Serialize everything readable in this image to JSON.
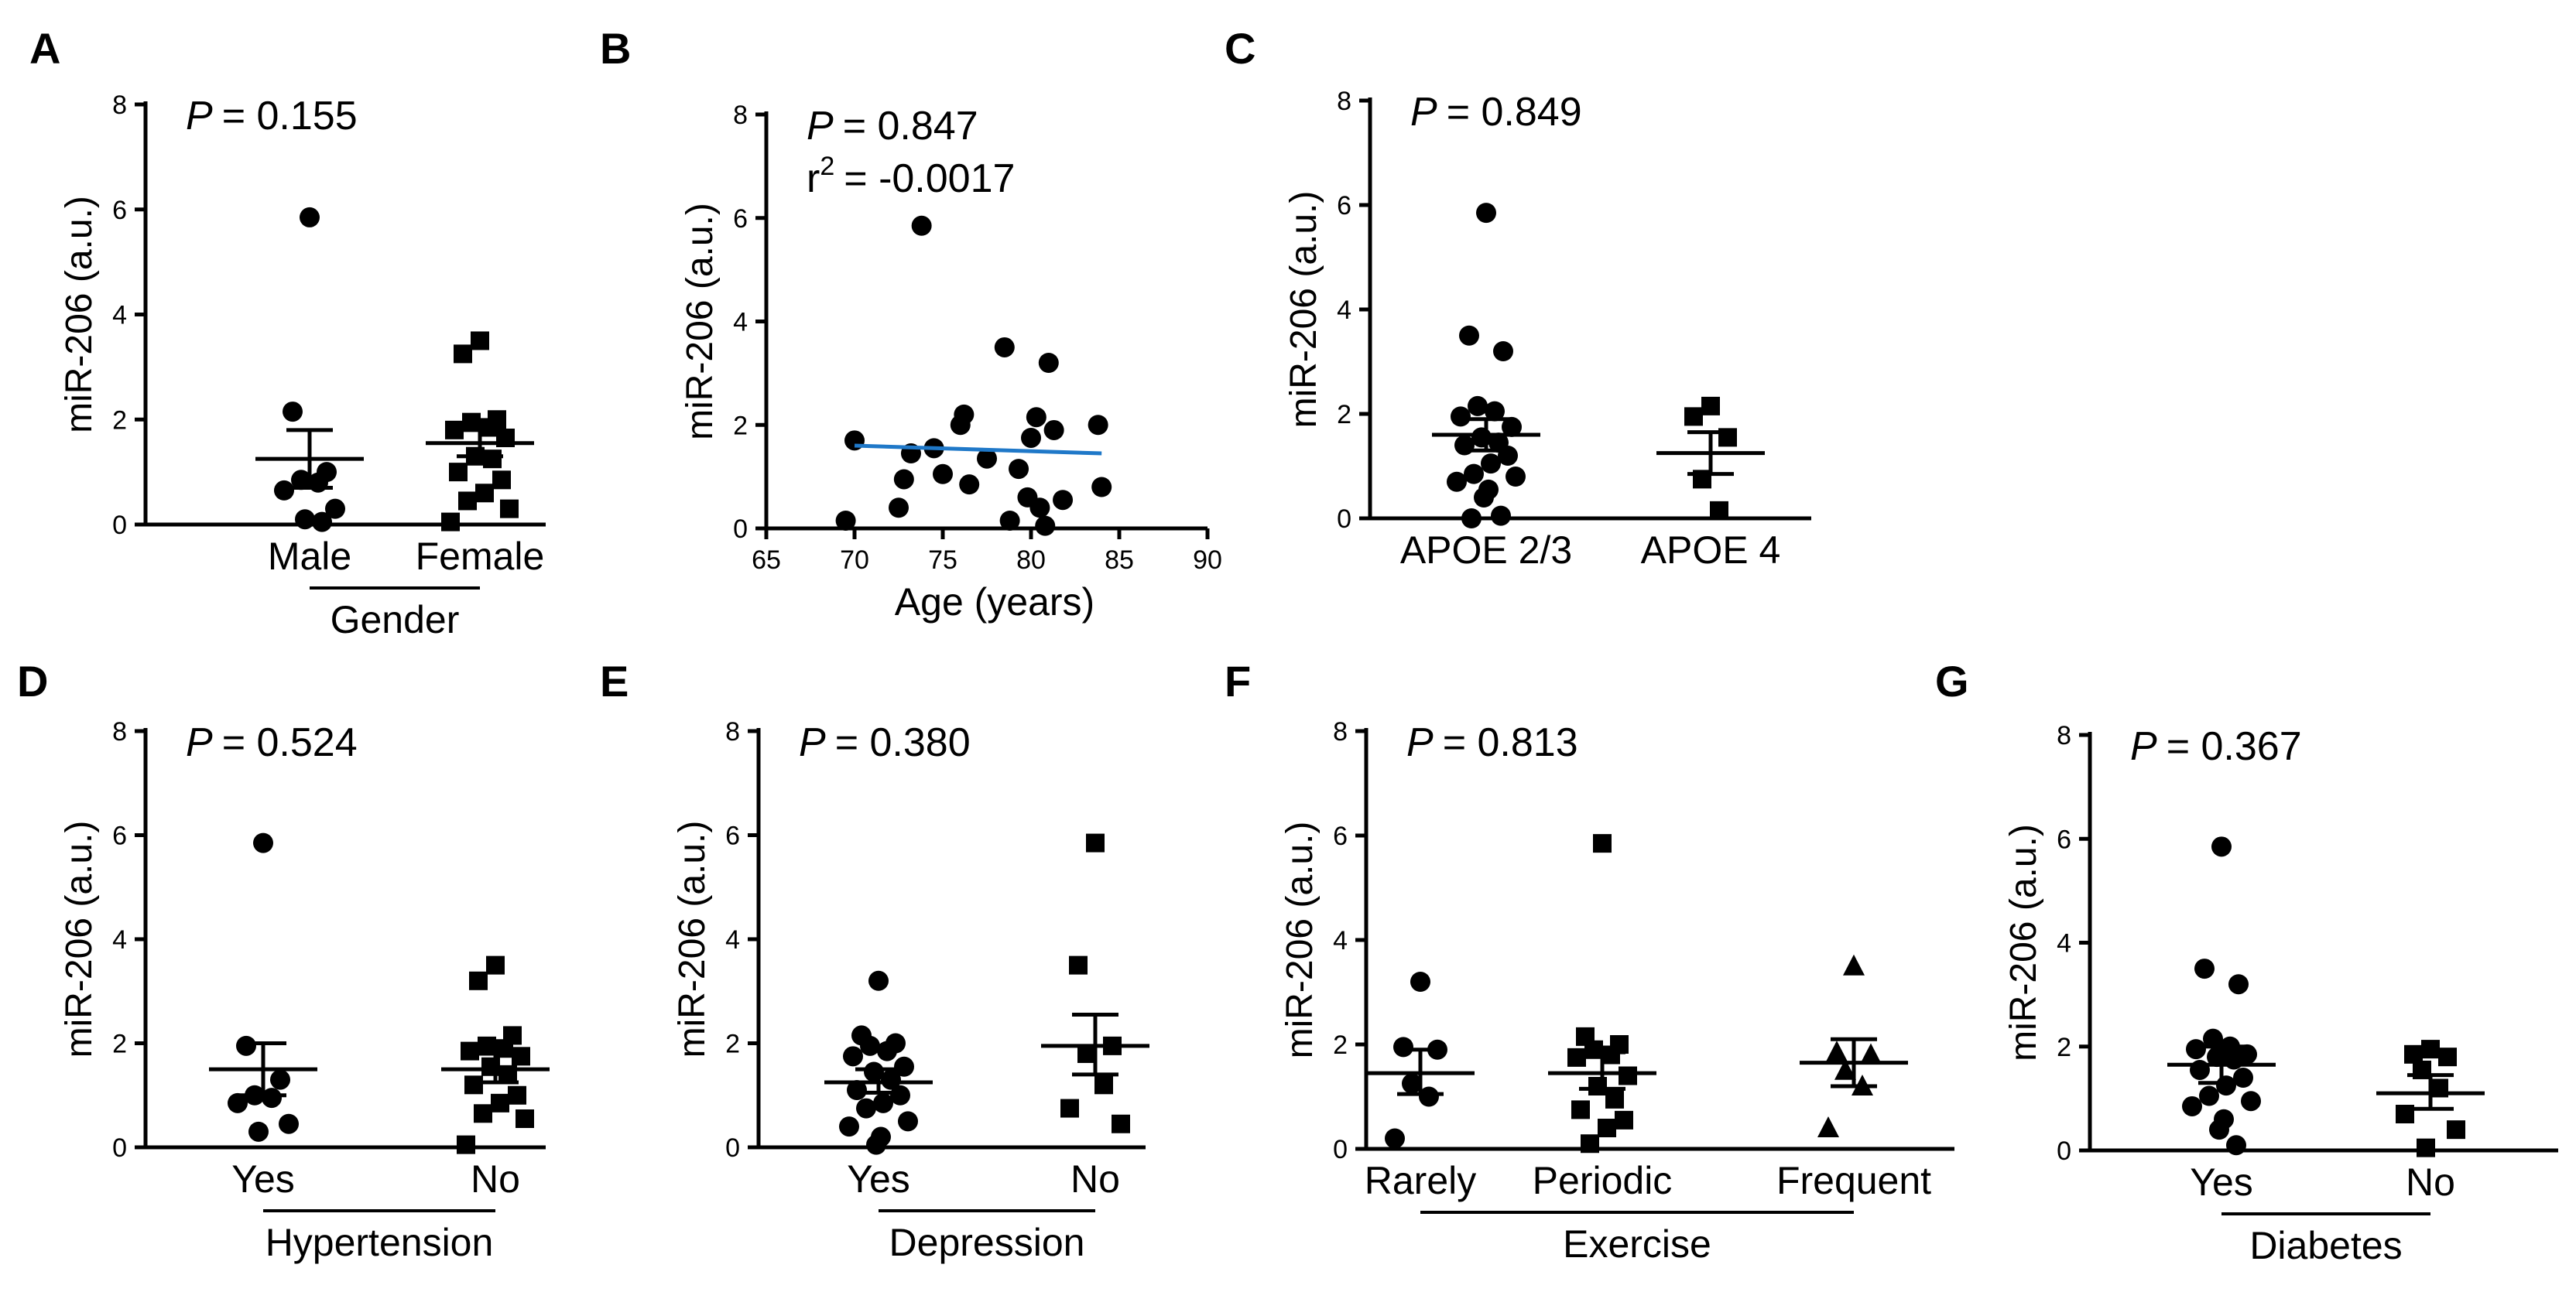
{
  "chart_data": [
    {
      "panel": "A",
      "type": "scatter",
      "ylabel": "miR-206 (a.u.)",
      "ylim": [
        0,
        8
      ],
      "yticks": [
        0,
        2,
        4,
        6,
        8
      ],
      "p_label": "P",
      "p_value": "= 0.155",
      "xgroup_label": "Gender",
      "groups": [
        {
          "name": "Male",
          "marker": "circle",
          "mean": 1.25,
          "sem_low": 0.7,
          "sem_high": 1.8,
          "points": [
            5.85,
            2.15,
            1.0,
            0.85,
            0.8,
            0.65,
            0.3,
            0.1,
            0.05
          ]
        },
        {
          "name": "Female",
          "marker": "square",
          "mean": 1.55,
          "sem_low": 1.3,
          "sem_high": 1.8,
          "points": [
            3.5,
            3.25,
            2.0,
            1.95,
            1.85,
            1.8,
            1.65,
            1.3,
            1.25,
            1.0,
            0.85,
            0.6,
            0.45,
            0.3,
            0.05
          ]
        }
      ]
    },
    {
      "panel": "B",
      "type": "scatter",
      "xlabel": "Age (years)",
      "ylabel": "miR-206 (a.u.)",
      "xlim": [
        65,
        90
      ],
      "xticks": [
        65,
        70,
        75,
        80,
        85,
        90
      ],
      "ylim": [
        0,
        8
      ],
      "yticks": [
        0,
        2,
        4,
        6,
        8
      ],
      "p_label": "P",
      "p_value": "= 0.847",
      "r2_label": "r",
      "r2_exp": "2",
      "r2_value": "= -0.0017",
      "fit_line": {
        "x": [
          70,
          84
        ],
        "y": [
          1.6,
          1.45
        ],
        "color": "#1f78c8"
      },
      "points": [
        {
          "x": 69.5,
          "y": 0.15
        },
        {
          "x": 70.0,
          "y": 1.7
        },
        {
          "x": 72.5,
          "y": 0.4
        },
        {
          "x": 72.8,
          "y": 0.95
        },
        {
          "x": 73.2,
          "y": 1.45
        },
        {
          "x": 73.8,
          "y": 5.85
        },
        {
          "x": 74.5,
          "y": 1.55
        },
        {
          "x": 75.0,
          "y": 1.05
        },
        {
          "x": 76.0,
          "y": 2.0
        },
        {
          "x": 76.2,
          "y": 2.2
        },
        {
          "x": 76.5,
          "y": 0.85
        },
        {
          "x": 77.5,
          "y": 1.35
        },
        {
          "x": 78.5,
          "y": 3.5
        },
        {
          "x": 78.8,
          "y": 0.15
        },
        {
          "x": 79.3,
          "y": 1.15
        },
        {
          "x": 79.8,
          "y": 0.6
        },
        {
          "x": 80.0,
          "y": 1.75
        },
        {
          "x": 80.3,
          "y": 2.15
        },
        {
          "x": 80.5,
          "y": 0.4
        },
        {
          "x": 80.8,
          "y": 0.05
        },
        {
          "x": 81.0,
          "y": 3.2
        },
        {
          "x": 81.3,
          "y": 1.9
        },
        {
          "x": 81.8,
          "y": 0.55
        },
        {
          "x": 83.8,
          "y": 2.0
        },
        {
          "x": 84.0,
          "y": 0.8
        }
      ]
    },
    {
      "panel": "C",
      "type": "scatter",
      "ylabel": "miR-206 (a.u.)",
      "ylim": [
        0,
        8
      ],
      "yticks": [
        0,
        2,
        4,
        6,
        8
      ],
      "p_label": "P",
      "p_value": "= 0.849",
      "xgroup_label": "",
      "groups": [
        {
          "name": "APOE 2/3",
          "marker": "circle",
          "mean": 1.6,
          "sem_low": 1.3,
          "sem_high": 1.9,
          "points": [
            5.85,
            3.5,
            3.2,
            2.15,
            2.05,
            1.95,
            1.75,
            1.55,
            1.45,
            1.4,
            1.2,
            1.05,
            0.85,
            0.8,
            0.7,
            0.55,
            0.4,
            0.05,
            0.0
          ]
        },
        {
          "name": "APOE 4",
          "marker": "square",
          "mean": 1.25,
          "sem_low": 0.85,
          "sem_high": 1.65,
          "points": [
            2.15,
            1.95,
            1.55,
            0.75,
            0.15
          ]
        }
      ]
    },
    {
      "panel": "D",
      "type": "scatter",
      "ylabel": "miR-206 (a.u.)",
      "ylim": [
        0,
        8
      ],
      "yticks": [
        0,
        2,
        4,
        6,
        8
      ],
      "p_label": "P",
      "p_value": "= 0.524",
      "xgroup_label": "Hypertension",
      "groups": [
        {
          "name": "Yes",
          "marker": "circle",
          "mean": 1.5,
          "sem_low": 1.0,
          "sem_high": 2.0,
          "points": [
            5.85,
            1.95,
            1.3,
            1.0,
            0.95,
            0.85,
            0.45,
            0.3
          ]
        },
        {
          "name": "No",
          "marker": "square",
          "mean": 1.5,
          "sem_low": 1.25,
          "sem_high": 1.8,
          "points": [
            3.5,
            3.2,
            2.15,
            1.95,
            1.9,
            1.85,
            1.75,
            1.55,
            1.4,
            1.2,
            1.0,
            0.85,
            0.65,
            0.55,
            0.05
          ]
        }
      ]
    },
    {
      "panel": "E",
      "type": "scatter",
      "ylabel": "miR-206 (a.u.)",
      "ylim": [
        0,
        8
      ],
      "yticks": [
        0,
        2,
        4,
        6,
        8
      ],
      "p_label": "P",
      "p_value": "= 0.380",
      "xgroup_label": "Depression",
      "groups": [
        {
          "name": "Yes",
          "marker": "circle",
          "mean": 1.25,
          "sem_low": 1.05,
          "sem_high": 1.5,
          "points": [
            3.2,
            2.15,
            2.0,
            1.95,
            1.85,
            1.75,
            1.55,
            1.45,
            1.3,
            1.1,
            1.0,
            0.85,
            0.75,
            0.5,
            0.4,
            0.2,
            0.05
          ]
        },
        {
          "name": "No",
          "marker": "square",
          "mean": 1.95,
          "sem_low": 1.4,
          "sem_high": 2.55,
          "points": [
            5.85,
            3.5,
            1.95,
            1.8,
            1.2,
            0.75,
            0.45
          ]
        }
      ]
    },
    {
      "panel": "F",
      "type": "scatter",
      "ylabel": "miR-206 (a.u.)",
      "ylim": [
        0,
        8
      ],
      "yticks": [
        0,
        2,
        4,
        6,
        8
      ],
      "p_label": "P",
      "p_value": "= 0.813",
      "xgroup_label": "Exercise",
      "groups": [
        {
          "name": "Rarely",
          "marker": "circle",
          "mean": 1.45,
          "sem_low": 1.05,
          "sem_high": 1.9,
          "points": [
            3.2,
            1.95,
            1.9,
            1.25,
            1.0,
            0.2
          ]
        },
        {
          "name": "Periodic",
          "marker": "square",
          "mean": 1.45,
          "sem_low": 1.15,
          "sem_high": 1.85,
          "points": [
            5.85,
            2.15,
            2.0,
            1.9,
            1.8,
            1.75,
            1.4,
            1.2,
            0.95,
            0.75,
            0.55,
            0.4,
            0.1
          ]
        },
        {
          "name": "Frequent",
          "marker": "triangle",
          "mean": 1.65,
          "sem_low": 1.2,
          "sem_high": 2.1,
          "points": [
            3.5,
            1.85,
            1.8,
            1.5,
            1.2,
            0.4
          ]
        }
      ]
    },
    {
      "panel": "G",
      "type": "scatter",
      "ylabel": "miR-206 (a.u.)",
      "ylim": [
        0,
        8
      ],
      "yticks": [
        0,
        2,
        4,
        6,
        8
      ],
      "p_label": "P",
      "p_value": "= 0.367",
      "xgroup_label": "Diabetes",
      "groups": [
        {
          "name": "Yes",
          "marker": "circle",
          "mean": 1.65,
          "sem_low": 1.3,
          "sem_high": 2.0,
          "points": [
            5.85,
            3.5,
            3.2,
            2.15,
            2.0,
            1.95,
            1.85,
            1.8,
            1.75,
            1.55,
            1.4,
            1.25,
            1.05,
            0.95,
            0.85,
            0.6,
            0.4,
            0.1
          ]
        },
        {
          "name": "No",
          "marker": "square",
          "mean": 1.1,
          "sem_low": 0.8,
          "sem_high": 1.45,
          "points": [
            1.95,
            1.85,
            1.8,
            1.55,
            1.2,
            0.7,
            0.4,
            0.05
          ]
        }
      ]
    }
  ]
}
